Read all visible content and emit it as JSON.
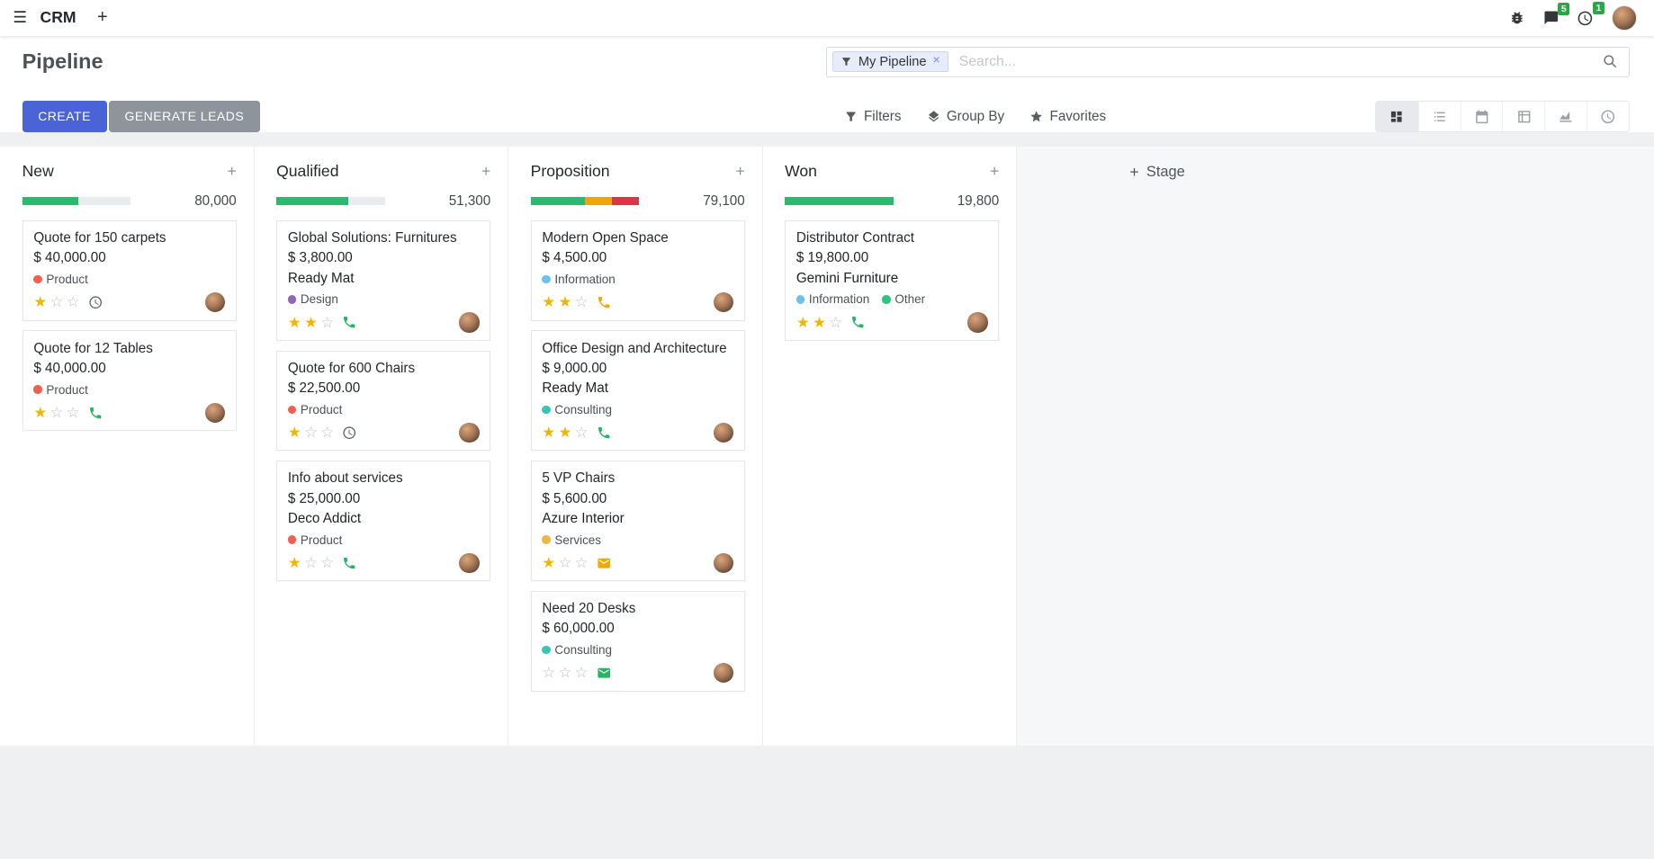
{
  "colors": {
    "primary": "#4a63d6",
    "secondary": "#8d949c",
    "badge": "#28a745",
    "star": "#f0b500",
    "progress_green": "#29b96f",
    "progress_yellow": "#f0a30a",
    "progress_red": "#dc3545"
  },
  "icons": {
    "hamburger": "☰",
    "plus": "+",
    "close": "×"
  },
  "topbar": {
    "app_name": "CRM",
    "messages_badge": "5",
    "activities_badge": "1"
  },
  "control_panel": {
    "title": "Pipeline",
    "create_label": "CREATE",
    "generate_leads_label": "GENERATE LEADS",
    "filters_label": "Filters",
    "group_by_label": "Group By",
    "favorites_label": "Favorites",
    "search": {
      "facet": "My Pipeline",
      "placeholder": "Search..."
    },
    "view_switcher": [
      "kanban",
      "list",
      "calendar",
      "pivot",
      "graph",
      "activity"
    ]
  },
  "board": {
    "add_stage_label": "Stage",
    "columns": [
      {
        "name": "New",
        "total": "80,000",
        "progress": [
          {
            "color": "#29b96f",
            "pct": 52
          }
        ],
        "cards": [
          {
            "title": "Quote for 150 carpets",
            "amount": "$ 40,000.00",
            "tags": [
              {
                "label": "Product",
                "color": "#f06050"
              }
            ],
            "stars": 1,
            "activity": {
              "icon": "clock",
              "color": "#62686e"
            }
          },
          {
            "title": "Quote for 12 Tables",
            "amount": "$ 40,000.00",
            "tags": [
              {
                "label": "Product",
                "color": "#f06050"
              }
            ],
            "stars": 1,
            "activity": {
              "icon": "phone",
              "color": "#28b463"
            }
          }
        ]
      },
      {
        "name": "Qualified",
        "total": "51,300",
        "progress": [
          {
            "color": "#29b96f",
            "pct": 66
          }
        ],
        "cards": [
          {
            "title": "Global Solutions: Furnitures",
            "amount": "$ 3,800.00",
            "partner": "Ready Mat",
            "tags": [
              {
                "label": "Design",
                "color": "#9365b8"
              }
            ],
            "stars": 2,
            "activity": {
              "icon": "phone",
              "color": "#28b463"
            }
          },
          {
            "title": "Quote for 600 Chairs",
            "amount": "$ 22,500.00",
            "tags": [
              {
                "label": "Product",
                "color": "#f06050"
              }
            ],
            "stars": 1,
            "activity": {
              "icon": "clock",
              "color": "#62686e"
            }
          },
          {
            "title": "Info about services",
            "amount": "$ 25,000.00",
            "partner": "Deco Addict",
            "tags": [
              {
                "label": "Product",
                "color": "#f06050"
              }
            ],
            "stars": 1,
            "activity": {
              "icon": "phone",
              "color": "#28b463"
            }
          }
        ]
      },
      {
        "name": "Proposition",
        "total": "79,100",
        "progress": [
          {
            "color": "#29b96f",
            "pct": 50
          },
          {
            "color": "#f0a30a",
            "pct": 25
          },
          {
            "color": "#dc3545",
            "pct": 25
          }
        ],
        "cards": [
          {
            "title": "Modern Open Space",
            "amount": "$ 4,500.00",
            "tags": [
              {
                "label": "Information",
                "color": "#6cc1ed"
              }
            ],
            "stars": 2,
            "activity": {
              "icon": "phone",
              "color": "#eda900"
            }
          },
          {
            "title": "Office Design and Architecture",
            "amount": "$ 9,000.00",
            "partner": "Ready Mat",
            "tags": [
              {
                "label": "Consulting",
                "color": "#38c5b5"
              }
            ],
            "stars": 2,
            "activity": {
              "icon": "phone",
              "color": "#28b463"
            }
          },
          {
            "title": "5 VP Chairs",
            "amount": "$ 5,600.00",
            "partner": "Azure Interior",
            "tags": [
              {
                "label": "Services",
                "color": "#eab945"
              }
            ],
            "stars": 1,
            "activity": {
              "icon": "envelope",
              "color": "#eda900"
            }
          },
          {
            "title": "Need 20 Desks",
            "amount": "$ 60,000.00",
            "tags": [
              {
                "label": "Consulting",
                "color": "#38c5b5"
              }
            ],
            "stars": 0,
            "activity": {
              "icon": "envelope",
              "color": "#28b463"
            }
          }
        ]
      },
      {
        "name": "Won",
        "total": "19,800",
        "progress": [
          {
            "color": "#29b96f",
            "pct": 100
          }
        ],
        "cards": [
          {
            "title": "Distributor Contract",
            "amount": "$ 19,800.00",
            "partner": "Gemini Furniture",
            "tags": [
              {
                "label": "Information",
                "color": "#6cc1ed"
              },
              {
                "label": "Other",
                "color": "#30c381"
              }
            ],
            "stars": 2,
            "activity": {
              "icon": "phone",
              "color": "#28b463"
            }
          }
        ]
      }
    ]
  }
}
